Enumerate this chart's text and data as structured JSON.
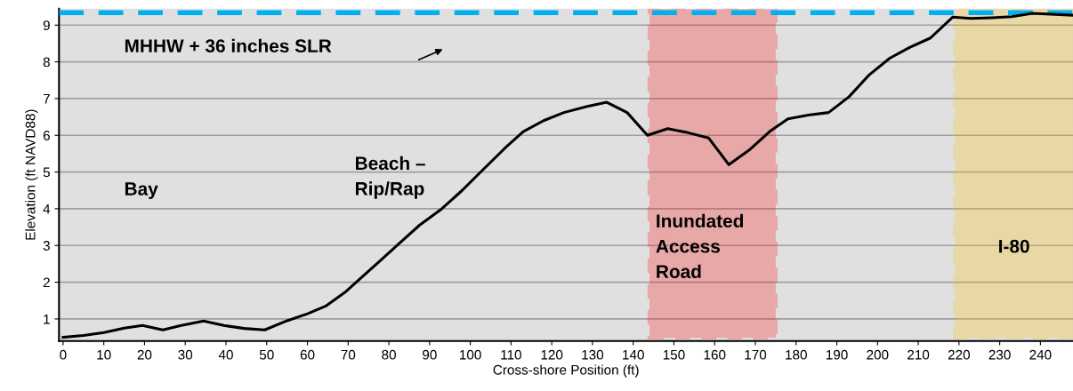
{
  "chart_data": {
    "type": "line",
    "xlabel": "Cross-shore Position (ft)",
    "ylabel": "Elevation (ft NAVD88)",
    "x": [
      0,
      5,
      10,
      15,
      19.5,
      24.5,
      29,
      34.5,
      39.5,
      44.5,
      49.5,
      55,
      60,
      64.5,
      69.5,
      73,
      78,
      82.5,
      87.5,
      93,
      98,
      103,
      108.5,
      113,
      118,
      123,
      128.5,
      133.5,
      138.5,
      143.5,
      148.5,
      153.5,
      158.5,
      163.5,
      168.5,
      173.5,
      178,
      183,
      188,
      193,
      198,
      203,
      208,
      213,
      218.5,
      223,
      228,
      233,
      238,
      248
    ],
    "series": [
      {
        "color": "#000000",
        "values": [
          0.5,
          0.55,
          0.63,
          0.75,
          0.82,
          0.7,
          0.82,
          0.94,
          0.82,
          0.74,
          0.7,
          0.95,
          1.14,
          1.35,
          1.75,
          2.1,
          2.6,
          3.05,
          3.55,
          4.0,
          4.5,
          5.05,
          5.65,
          6.1,
          6.4,
          6.62,
          6.78,
          6.9,
          6.62,
          6.0,
          6.18,
          6.07,
          5.93,
          5.2,
          5.6,
          6.1,
          6.45,
          6.55,
          6.62,
          7.05,
          7.65,
          8.1,
          8.4,
          8.65,
          9.22,
          9.18,
          9.2,
          9.23,
          9.32,
          9.27
        ]
      }
    ],
    "xlim": [
      -1,
      248
    ],
    "ylim": [
      0.4,
      9.45
    ],
    "xticks": [
      0,
      10,
      20,
      30,
      40,
      50,
      60,
      70,
      80,
      90,
      100,
      110,
      120,
      130,
      140,
      150,
      160,
      170,
      180,
      190,
      200,
      210,
      220,
      230,
      240
    ],
    "yticks": [
      1,
      2,
      3,
      4,
      5,
      6,
      7,
      8,
      9
    ],
    "grid": "y",
    "marker": "none",
    "line_style": "solid",
    "ref_lines": [
      {
        "axis": "y",
        "value": 9.34,
        "label": "MHHW + 36 inches SLR",
        "color": "#00b0f0",
        "line_style": "dashed"
      }
    ],
    "bands": [
      {
        "axis": "x",
        "from": 144,
        "to": 175,
        "label": "Inundated\nAccess\nRoad",
        "color": "#ff0000"
      },
      {
        "axis": "x",
        "from": 219,
        "to": 248,
        "label": "I-80",
        "color": "#ffc000"
      }
    ],
    "annotations": [
      "Bay",
      "Beach –\nRip/Rap"
    ]
  }
}
